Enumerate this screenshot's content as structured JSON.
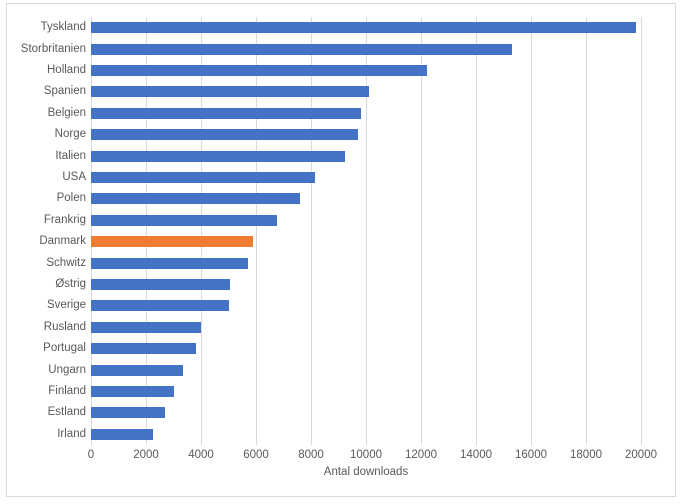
{
  "chart_data": {
    "type": "bar",
    "orientation": "horizontal",
    "title": "",
    "xlabel": "Antal downloads",
    "ylabel": "",
    "xlim": [
      0,
      20000
    ],
    "x_ticks": [
      0,
      2000,
      4000,
      6000,
      8000,
      10000,
      12000,
      14000,
      16000,
      18000,
      20000
    ],
    "grid": true,
    "legend": false,
    "bar_color": "#4472C4",
    "highlight_color": "#ED7D31",
    "highlight_category": "Danmark",
    "categories": [
      "Tyskland",
      "Storbritanien",
      "Holland",
      "Spanien",
      "Belgien",
      "Norge",
      "Italien",
      "USA",
      "Polen",
      "Frankrig",
      "Danmark",
      "Schwitz",
      "Østrig",
      "Sverige",
      "Rusland",
      "Portugal",
      "Ungarn",
      "Finland",
      "Estland",
      "Irland"
    ],
    "values": [
      19800,
      15300,
      12200,
      10100,
      9800,
      9700,
      9250,
      8150,
      7600,
      6750,
      5900,
      5700,
      5050,
      5000,
      4000,
      3800,
      3350,
      3000,
      2700,
      2250
    ]
  },
  "colors": {
    "gridline": "#d9d9d9",
    "border": "#d9d9d9",
    "text": "#595959",
    "background": "#ffffff"
  }
}
